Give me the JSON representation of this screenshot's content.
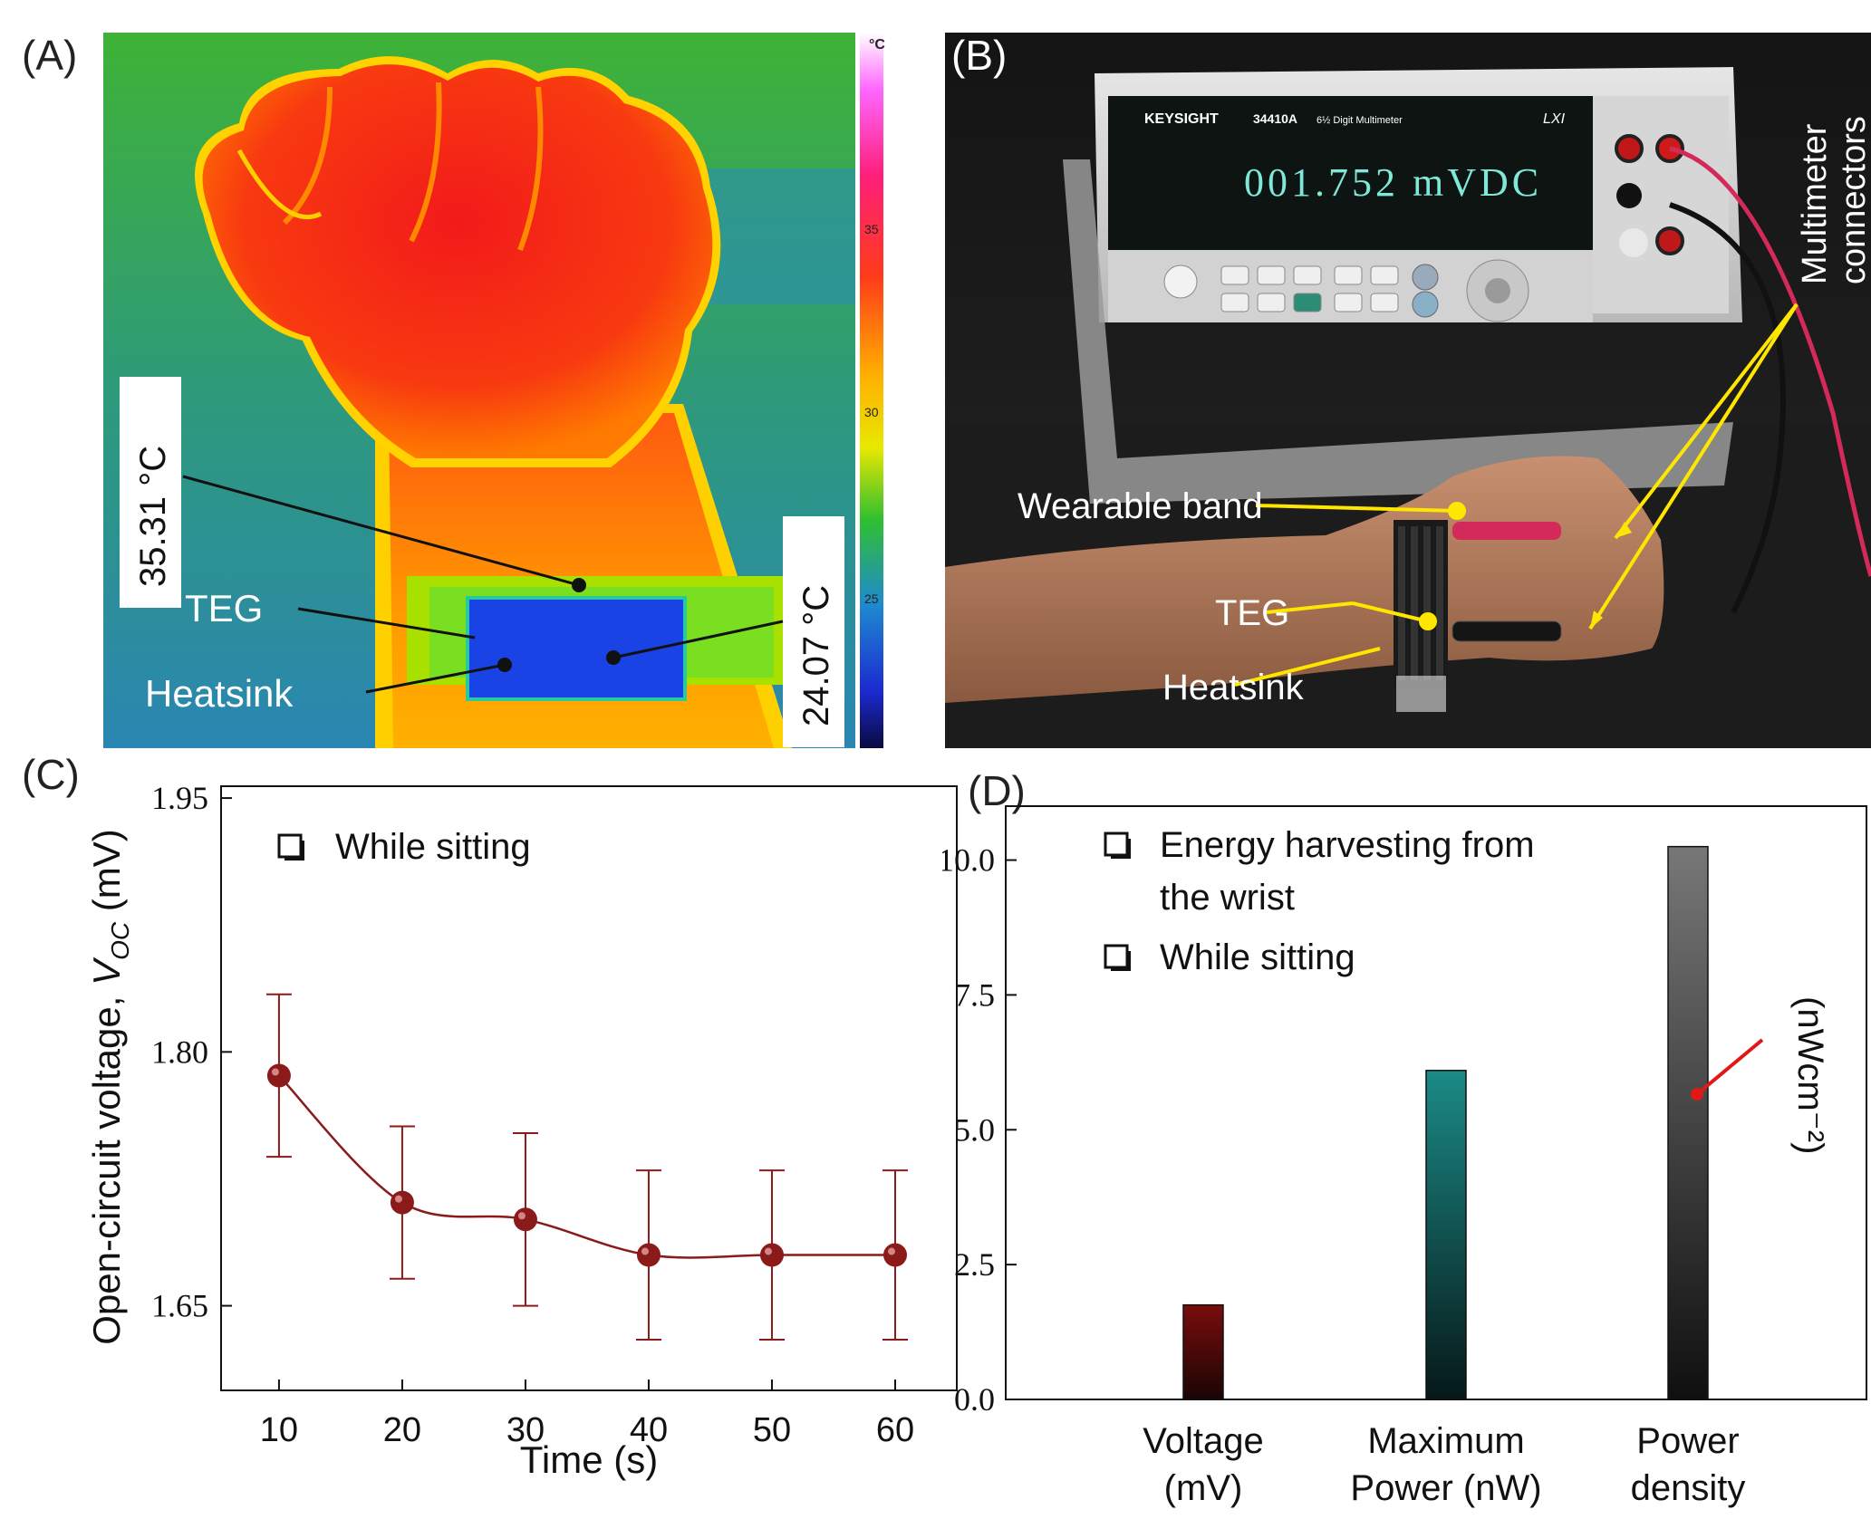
{
  "panels": {
    "a": {
      "label": "(A)",
      "scale_unit": "°C",
      "scale_ticks": [
        "35",
        "30",
        "25"
      ],
      "temp_upper": "35.31 °C",
      "temp_lower": "24.07 °C",
      "teg_label": "TEG",
      "heatsink_label": "Heatsink"
    },
    "b": {
      "label": "(B)",
      "brand": "KEYSIGHT",
      "model": "34410A",
      "model_desc": "6½ Digit Multimeter",
      "lxi": "LXI",
      "display_reading": "001.752  mVDC",
      "connectors_label_1": "Multimeter",
      "connectors_label_2": "connectors",
      "band_label": "Wearable band",
      "teg_label": "TEG",
      "heatsink_label": "Heatsink"
    },
    "c": {
      "label": "(C)",
      "legend": "While sitting"
    },
    "d": {
      "label": "(D)",
      "legend_1a": "Energy harvesting from",
      "legend_1b": "the wrist",
      "legend_2": "While sitting",
      "unit_annotation": "(nWcm⁻²)",
      "cat_1a": "Voltage",
      "cat_1b": "(mV)",
      "cat_2a": "Maximum",
      "cat_2b": "Power (nW)",
      "cat_3a": "Power",
      "cat_3b": "density"
    }
  },
  "chart_data": [
    {
      "id": "C",
      "type": "line",
      "title": "",
      "xlabel": "Time  (s)",
      "ylabel_prefix": "Open-circuit voltage,  ",
      "ylabel_var": "V",
      "ylabel_sub": "OC",
      "ylabel_unit": " (mV)",
      "x": [
        10,
        20,
        30,
        40,
        50,
        60
      ],
      "y": [
        1.786,
        1.711,
        1.701,
        1.68,
        1.68,
        1.68
      ],
      "error": [
        0.048,
        0.045,
        0.051,
        0.05,
        0.05,
        0.05
      ],
      "xlim": [
        5.3,
        65
      ],
      "ylim": [
        1.6,
        1.957
      ],
      "xticks": [
        "10",
        "20",
        "30",
        "40",
        "50",
        "60"
      ],
      "yticks": [
        1.65,
        1.8,
        1.95
      ],
      "ytick_labels": [
        "1.65",
        "1.80",
        "1.95"
      ],
      "color": "#8b1a1a"
    },
    {
      "id": "D",
      "type": "bar",
      "title": "",
      "categories": [
        "Voltage (mV)",
        "Maximum Power (nW)",
        "Power density (nWcm-2)"
      ],
      "values": [
        1.752,
        6.1,
        10.25
      ],
      "ylim": [
        0,
        11.0
      ],
      "yticks": [
        0.0,
        2.5,
        5.0,
        7.5,
        10.0
      ],
      "ytick_labels": [
        "0.0",
        "2.5",
        "5.0",
        "7.5",
        "10.0"
      ],
      "colors": [
        "#7a0c0c",
        "#1b8a86",
        "#6e6e6e"
      ]
    }
  ]
}
